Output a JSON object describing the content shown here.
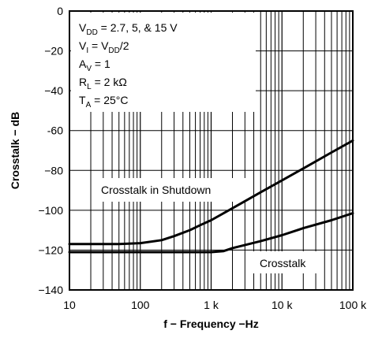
{
  "chart_data": {
    "type": "line",
    "xlabel": "f − Frequency −Hz",
    "ylabel": "Crosstalk − dB",
    "x_scale": "log",
    "xlim": [
      10,
      100000
    ],
    "ylim": [
      -140,
      0
    ],
    "grid": true,
    "x_ticks": [
      {
        "value": 10,
        "label": "10"
      },
      {
        "value": 100,
        "label": "100"
      },
      {
        "value": 1000,
        "label": "1 k"
      },
      {
        "value": 10000,
        "label": "10 k"
      },
      {
        "value": 100000,
        "label": "100 k"
      }
    ],
    "y_ticks": [
      {
        "value": 0,
        "label": "0"
      },
      {
        "value": -20,
        "label": "−20"
      },
      {
        "value": -40,
        "label": "−40"
      },
      {
        "value": -60,
        "label": "-60"
      },
      {
        "value": -80,
        "label": "−80"
      },
      {
        "value": -100,
        "label": "−100"
      },
      {
        "value": -120,
        "label": "−120"
      },
      {
        "value": -140,
        "label": "−140"
      }
    ],
    "conditions": [
      {
        "main": "V",
        "sub": "DD",
        "rest": " = 2.7, 5, & 15 V"
      },
      {
        "main": "V",
        "sub": "I",
        "rest": " = V",
        "sub2": "DD",
        "rest2": "/2"
      },
      {
        "main": "A",
        "sub": "V",
        "rest": " = 1"
      },
      {
        "main": "R",
        "sub": "L",
        "rest": " = 2 kΩ"
      },
      {
        "main": "T",
        "sub": "A",
        "rest": " = 25°C"
      }
    ],
    "series": [
      {
        "name": "Crosstalk in Shutdown",
        "x": [
          10,
          50,
          100,
          200,
          300,
          500,
          700,
          1000,
          2000,
          5000,
          10000,
          20000,
          50000,
          100000
        ],
        "y": [
          -117,
          -117,
          -116.5,
          -115,
          -113,
          -110,
          -107.5,
          -105,
          -99,
          -91,
          -85,
          -79,
          -71,
          -65
        ]
      },
      {
        "name": "Crosstalk",
        "x": [
          10,
          100,
          500,
          1000,
          1500,
          2000,
          5000,
          10000,
          20000,
          50000,
          100000
        ],
        "y": [
          -121,
          -121,
          -121,
          -121,
          -120.5,
          -119,
          -115.5,
          -112.5,
          -109,
          -105,
          -101.5
        ]
      }
    ]
  }
}
